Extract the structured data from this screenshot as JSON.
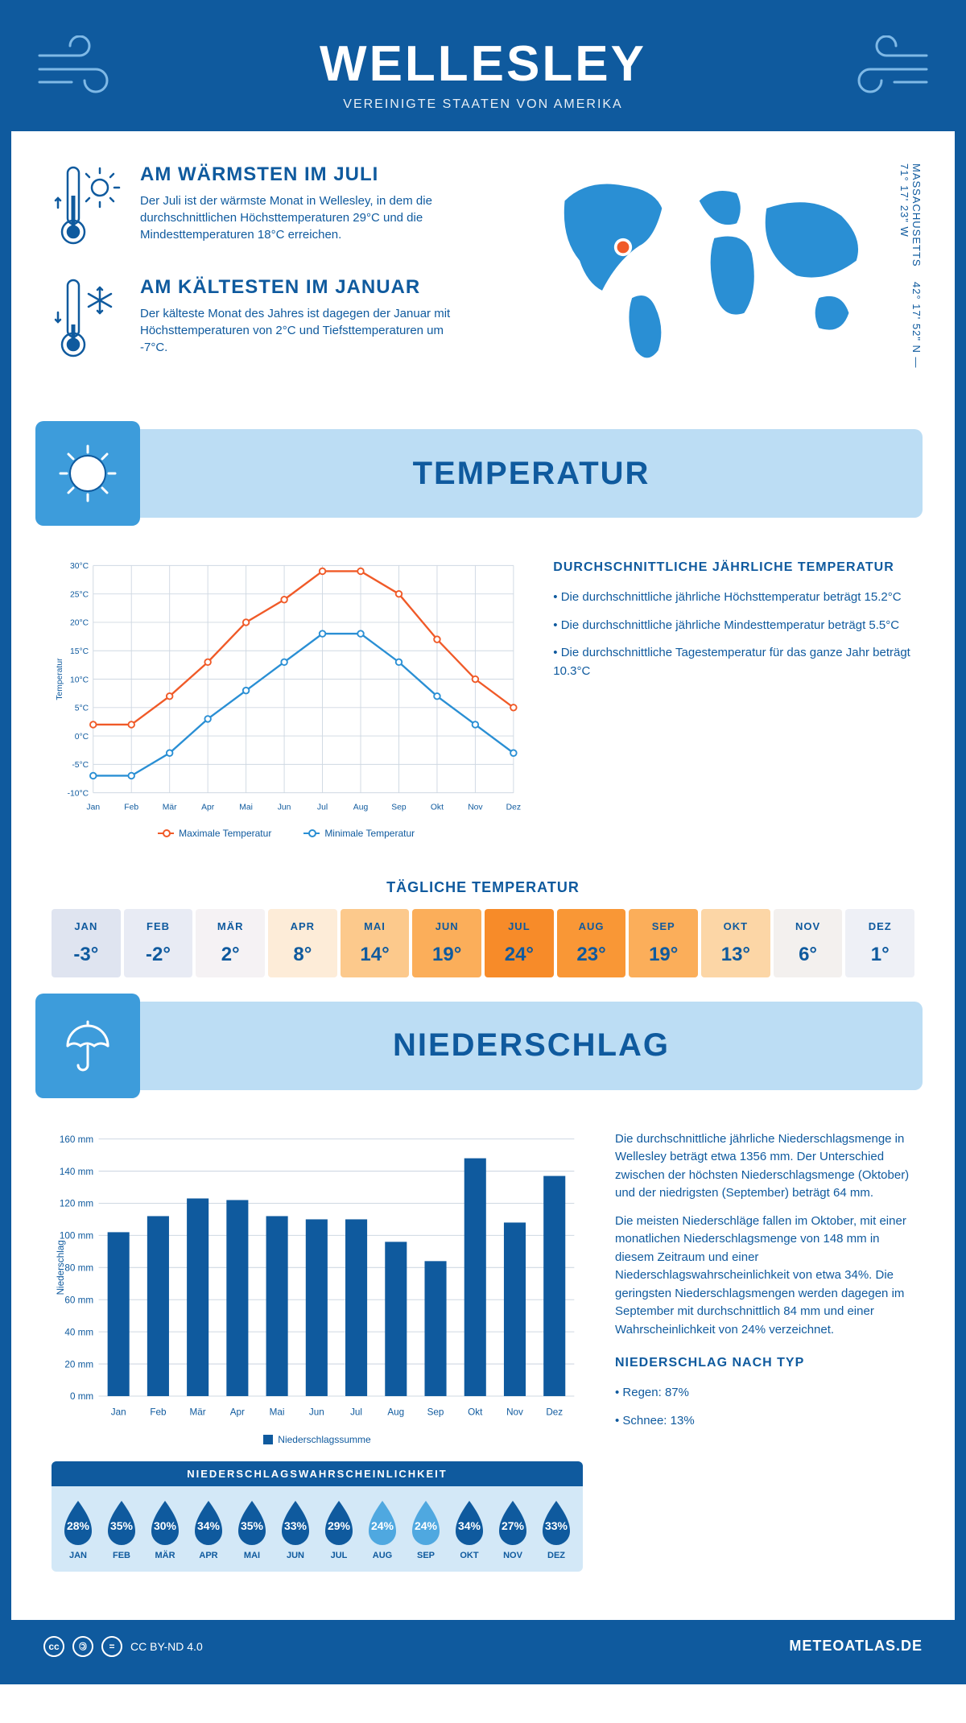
{
  "header": {
    "title": "WELLESLEY",
    "subtitle": "VEREINIGTE STAATEN VON AMERIKA"
  },
  "coords": {
    "line1": "42° 17' 52\" N — 71° 17' 23\" W",
    "state": "MASSACHUSETTS"
  },
  "facts": {
    "warm": {
      "title": "AM WÄRMSTEN IM JULI",
      "body": "Der Juli ist der wärmste Monat in Wellesley, in dem die durchschnittlichen Höchsttemperaturen 29°C und die Mindesttemperaturen 18°C erreichen."
    },
    "cold": {
      "title": "AM KÄLTESTEN IM JANUAR",
      "body": "Der kälteste Monat des Jahres ist dagegen der Januar mit Höchsttemperaturen von 2°C und Tiefsttemperaturen um -7°C."
    }
  },
  "sections": {
    "temp": "TEMPERATUR",
    "precip": "NIEDERSCHLAG"
  },
  "temp_chart": {
    "type": "line",
    "months": [
      "Jan",
      "Feb",
      "Mär",
      "Apr",
      "Mai",
      "Jun",
      "Jul",
      "Aug",
      "Sep",
      "Okt",
      "Nov",
      "Dez"
    ],
    "ylim": [
      -10,
      30
    ],
    "ytick_step": 5,
    "ylabel": "Temperatur",
    "series": {
      "max": {
        "label": "Maximale Temperatur",
        "color": "#f05a28",
        "values": [
          2,
          2,
          7,
          13,
          20,
          24,
          29,
          29,
          25,
          17,
          10,
          5
        ]
      },
      "min": {
        "label": "Minimale Temperatur",
        "color": "#2a8fd4",
        "values": [
          -7,
          -7,
          -3,
          3,
          8,
          13,
          18,
          18,
          13,
          7,
          2,
          -3
        ]
      }
    },
    "grid_color": "#cfd8e2",
    "background": "#ffffff"
  },
  "temp_text": {
    "title": "DURCHSCHNITTLICHE JÄHRLICHE TEMPERATUR",
    "p1": "• Die durchschnittliche jährliche Höchsttemperatur beträgt 15.2°C",
    "p2": "• Die durchschnittliche jährliche Mindesttemperatur beträgt 5.5°C",
    "p3": "• Die durchschnittliche Tagestemperatur für das ganze Jahr beträgt 10.3°C"
  },
  "daily_temp": {
    "title": "TÄGLICHE TEMPERATUR",
    "months": [
      "JAN",
      "FEB",
      "MÄR",
      "APR",
      "MAI",
      "JUN",
      "JUL",
      "AUG",
      "SEP",
      "OKT",
      "NOV",
      "DEZ"
    ],
    "values": [
      "-3°",
      "-2°",
      "2°",
      "8°",
      "14°",
      "19°",
      "24°",
      "23°",
      "19°",
      "13°",
      "6°",
      "1°"
    ],
    "colors": [
      "#dfe4f0",
      "#e8ebf4",
      "#f5f2f4",
      "#fdecd8",
      "#fcc98c",
      "#fbae5a",
      "#f78b29",
      "#f99736",
      "#fbae5a",
      "#fcd6a6",
      "#f3f0ee",
      "#eef0f6"
    ]
  },
  "precip_chart": {
    "type": "bar",
    "months": [
      "Jan",
      "Feb",
      "Mär",
      "Apr",
      "Mai",
      "Jun",
      "Jul",
      "Aug",
      "Sep",
      "Okt",
      "Nov",
      "Dez"
    ],
    "ylabel": "Niederschlag",
    "ylim": [
      0,
      160
    ],
    "ytick_step": 20,
    "values": [
      102,
      112,
      123,
      122,
      112,
      110,
      110,
      96,
      84,
      148,
      108,
      137
    ],
    "bar_color": "#0f5a9e",
    "grid_color": "#cfd8e2",
    "legend_label": "Niederschlagssumme"
  },
  "precip_text": {
    "p1": "Die durchschnittliche jährliche Niederschlagsmenge in Wellesley beträgt etwa 1356 mm. Der Unterschied zwischen der höchsten Niederschlagsmenge (Oktober) und der niedrigsten (September) beträgt 64 mm.",
    "p2": "Die meisten Niederschläge fallen im Oktober, mit einer monatlichen Niederschlagsmenge von 148 mm in diesem Zeitraum und einer Niederschlagswahrscheinlichkeit von etwa 34%. Die geringsten Niederschlagsmengen werden dagegen im September mit durchschnittlich 84 mm und einer Wahrscheinlichkeit von 24% verzeichnet.",
    "type_title": "NIEDERSCHLAG NACH TYP",
    "type_1": "• Regen: 87%",
    "type_2": "• Schnee: 13%"
  },
  "precip_prob": {
    "title": "NIEDERSCHLAGSWAHRSCHEINLICHKEIT",
    "months": [
      "JAN",
      "FEB",
      "MÄR",
      "APR",
      "MAI",
      "JUN",
      "JUL",
      "AUG",
      "SEP",
      "OKT",
      "NOV",
      "DEZ"
    ],
    "values": [
      "28%",
      "35%",
      "30%",
      "34%",
      "35%",
      "33%",
      "29%",
      "24%",
      "24%",
      "34%",
      "27%",
      "33%"
    ],
    "colors": [
      "#0f5a9e",
      "#0f5a9e",
      "#0f5a9e",
      "#0f5a9e",
      "#0f5a9e",
      "#0f5a9e",
      "#0f5a9e",
      "#4fa8e0",
      "#4fa8e0",
      "#0f5a9e",
      "#0f5a9e",
      "#0f5a9e"
    ]
  },
  "footer": {
    "license": "CC BY-ND 4.0",
    "site": "METEOATLAS.DE"
  }
}
